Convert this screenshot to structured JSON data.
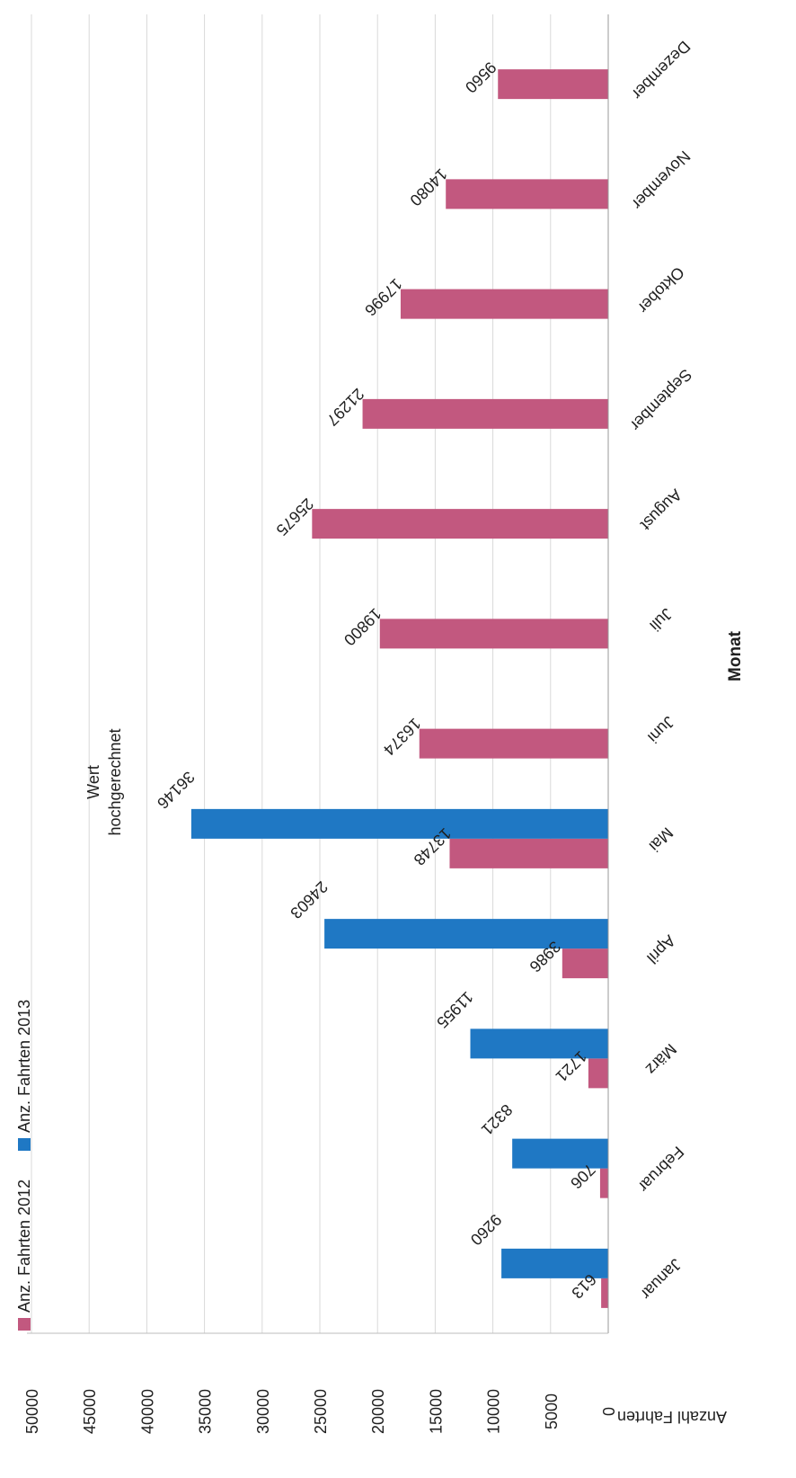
{
  "colors": {
    "series_2012": "#c2587f",
    "series_2013": "#1f78c4",
    "grid": "#d9d9d9",
    "axis": "#9a9a9a"
  },
  "chart_data": {
    "type": "bar",
    "orientation": "rotated-90-clockwise",
    "categories": [
      "Januar",
      "Februar",
      "März",
      "April",
      "Mai",
      "Juni",
      "Juli",
      "August",
      "September",
      "Oktober",
      "November",
      "Dezember"
    ],
    "series": [
      {
        "name": "Anz. Fahrten 2012",
        "color": "#c2587f",
        "values": [
          613,
          706,
          1721,
          3986,
          13748,
          16374,
          19800,
          25675,
          21297,
          17996,
          14080,
          9560
        ]
      },
      {
        "name": "Anz. Fahrten 2013",
        "color": "#1f78c4",
        "values": [
          9260,
          8321,
          11955,
          24603,
          36146,
          null,
          null,
          null,
          null,
          null,
          null,
          null
        ]
      }
    ],
    "data_labels": {
      "2012": [
        "613",
        "706",
        "1721",
        "3986",
        "13748",
        "16374",
        "19800",
        "25675",
        "21297",
        "17996",
        "14080",
        "9560"
      ],
      "2013": [
        "9260",
        "8321",
        "11955",
        "24603",
        "36146",
        "",
        "",
        "",
        "",
        "",
        "",
        ""
      ]
    },
    "y_ticks": [
      "0",
      "5000",
      "10000",
      "15000",
      "20000",
      "25000",
      "30000",
      "35000",
      "40000",
      "45000",
      "50000"
    ],
    "ylim": [
      0,
      50000
    ],
    "xlabel": "Monat",
    "ylabel": "Anzahl Fahrten",
    "grid": true,
    "legend_position": "top-left",
    "annotation": {
      "line1": "Wert",
      "line2": "hochgerechnet",
      "category": "Mai"
    }
  }
}
